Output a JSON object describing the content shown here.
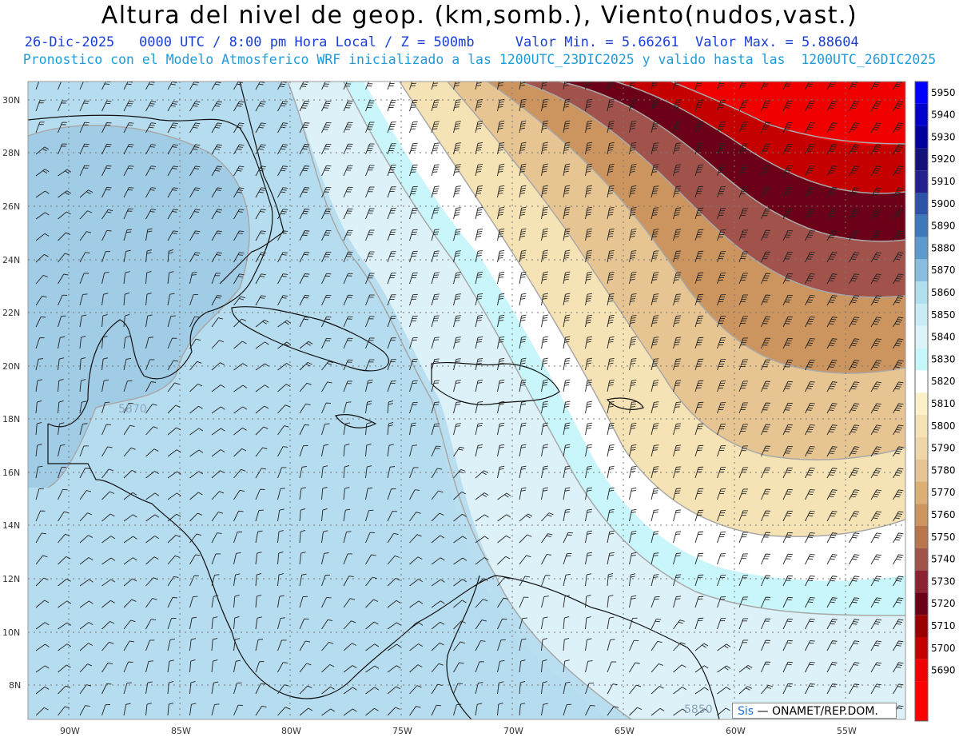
{
  "header": {
    "title": "Altura del nivel de geop. (km,somb.), Viento(nudos,vast.)",
    "line1": "   26-Dic-2025   0000 UTC / 8:00 pm Hora Local / Z = 500mb     Valor Min. = 5.66261  Valor Max. = 5.88604",
    "line2": "Pronostico con el Modelo Atmosferico WRF inicializado a las 1200UTC_23DIC2025 y valido hasta las  1200UTC_26DIC2025"
  },
  "map": {
    "lat_labels": [
      "30N",
      "28N",
      "26N",
      "24N",
      "22N",
      "20N",
      "18N",
      "16N",
      "14N",
      "12N",
      "10N",
      "8N"
    ],
    "lon_labels": [
      "90W",
      "85W",
      "80W",
      "75W",
      "70W",
      "65W",
      "60W",
      "55W"
    ],
    "contour_labels": [
      "5870",
      "5850"
    ],
    "credit_prefix": "Sis",
    "credit_text": " — ONAMET/REP.DOM."
  },
  "colorbar": {
    "levels": [
      "5950",
      "5940",
      "5930",
      "5920",
      "5910",
      "5900",
      "5890",
      "5880",
      "5870",
      "5860",
      "5850",
      "5840",
      "5830",
      "5820",
      "5810",
      "5800",
      "5790",
      "5780",
      "5770",
      "5760",
      "5750",
      "5740",
      "5730",
      "5720",
      "5710",
      "5700",
      "5690"
    ],
    "colors": [
      "#0000ff",
      "#0000cc",
      "#00009e",
      "#13117a",
      "#241f8c",
      "#2d53a8",
      "#3d78bb",
      "#5d9bcf",
      "#88bde0",
      "#b1dfee",
      "#c9ebf4",
      "#dcf3f8",
      "#c6f7fb",
      "#ffffff",
      "#fbf0c8",
      "#f6e3b5",
      "#eed6a6",
      "#e7c592",
      "#dcaf75",
      "#cc955f",
      "#b9764c",
      "#a1524a",
      "#8b2330",
      "#6b0018",
      "#9a0000",
      "#c40000",
      "#f00000"
    ],
    "bottom_color": "#ff0000"
  }
}
